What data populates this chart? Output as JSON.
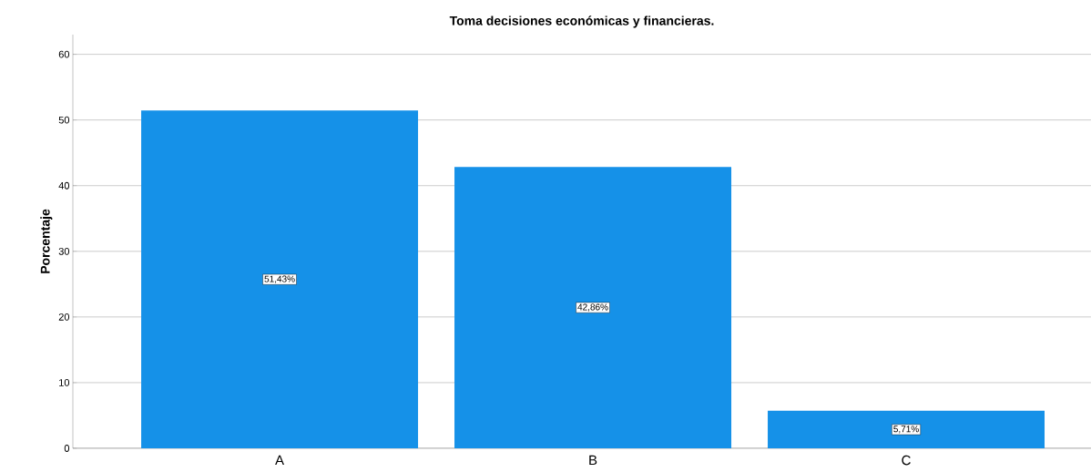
{
  "chart_data": {
    "type": "bar",
    "title": "Toma decisiones económicas y financieras.",
    "ylabel": "Porcentaje",
    "categories": [
      "A",
      "B",
      "C"
    ],
    "values": [
      51.43,
      42.86,
      5.71
    ],
    "value_labels": [
      "51,43%",
      "42,86%",
      "5,71%"
    ],
    "color": "#1591e8",
    "ylim": [
      0,
      63
    ],
    "yticks": [
      0,
      10,
      20,
      30,
      40,
      50,
      60
    ],
    "grid": "y"
  }
}
